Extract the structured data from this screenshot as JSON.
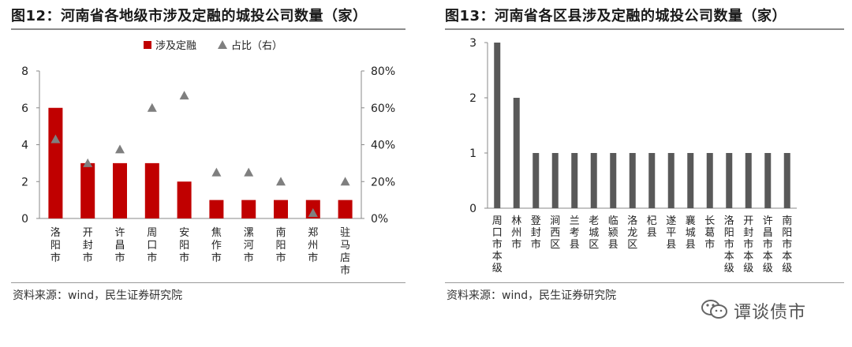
{
  "watermark": {
    "text": "谭谈债市"
  },
  "charts": [
    {
      "title": "图12：河南省各地级市涉及定融的城投公司数量（家）",
      "source": "资料来源：wind，民生证券研究院"
    },
    {
      "title": "图13：河南省各区县涉及定融的城投公司数量（家）",
      "source": "资料来源：wind，民生证券研究院"
    }
  ],
  "chart_data": [
    {
      "type": "bar",
      "title": "图12：河南省各地级市涉及定融的城投公司数量（家）",
      "categories": [
        "洛阳市",
        "开封市",
        "许昌市",
        "周口市",
        "安阳市",
        "焦作市",
        "漯河市",
        "南阳市",
        "郑州市",
        "驻马店市"
      ],
      "series": [
        {
          "name": "涉及定融",
          "type": "bar",
          "axis": "left",
          "color": "#c00000",
          "values": [
            6,
            3,
            3,
            3,
            2,
            1,
            1,
            1,
            1,
            1
          ]
        },
        {
          "name": "占比（右）",
          "type": "scatter",
          "marker": "triangle",
          "axis": "right",
          "color": "#7f7f7f",
          "values": [
            0.43,
            0.3,
            0.375,
            0.6,
            0.667,
            0.25,
            0.25,
            0.2,
            0.03,
            0.2
          ]
        }
      ],
      "ylim": [
        0,
        8
      ],
      "yticks": [
        "0",
        "2",
        "4",
        "6",
        "8"
      ],
      "y2lim": [
        0,
        0.8
      ],
      "y2ticks": [
        "0%",
        "20%",
        "40%",
        "60%",
        "80%"
      ],
      "legend_position": "top-center",
      "grid": false
    },
    {
      "type": "bar",
      "title": "图13：河南省各区县涉及定融的城投公司数量（家）",
      "categories": [
        "周口市本级",
        "林州市",
        "登封市",
        "涧西区",
        "兰考县",
        "老城区",
        "临颍县",
        "洛龙区",
        "杞县",
        "遂平县",
        "襄城县",
        "长葛市",
        "洛阳市本级",
        "开封市本级",
        "许昌市本级",
        "南阳市本级"
      ],
      "series": [
        {
          "color": "#595959",
          "values": [
            3,
            2,
            1,
            1,
            1,
            1,
            1,
            1,
            1,
            1,
            1,
            1,
            1,
            1,
            1,
            1
          ]
        }
      ],
      "ylim": [
        0,
        3
      ],
      "yticks": [
        "0",
        "1",
        "2",
        "3"
      ],
      "grid": false
    }
  ]
}
